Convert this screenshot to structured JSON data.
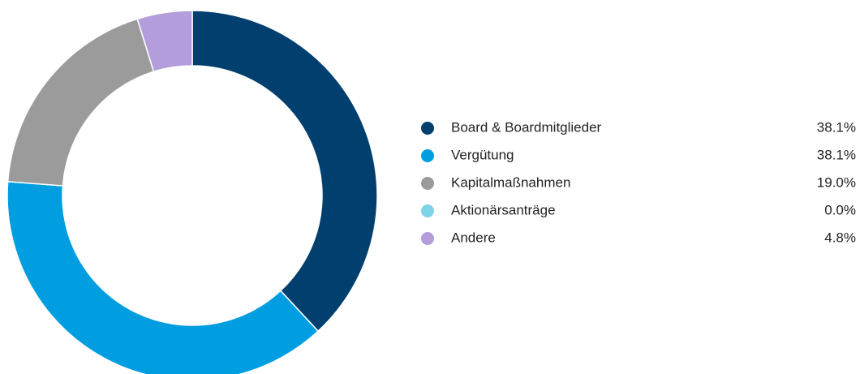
{
  "chart_data": {
    "type": "pie",
    "categories": [
      "Board & Boardmitglieder",
      "Vergütung",
      "Kapitalmaßnahmen",
      "Aktionärsanträge",
      "Andere"
    ],
    "values": [
      38.1,
      38.1,
      19.0,
      0.0,
      4.8
    ],
    "value_labels": [
      "38.1%",
      "38.1%",
      "19.0%",
      "0.0%",
      "4.8%"
    ],
    "colors": [
      "#003f6e",
      "#009ee0",
      "#9b9b9b",
      "#7fd3e6",
      "#b39ddb"
    ]
  }
}
